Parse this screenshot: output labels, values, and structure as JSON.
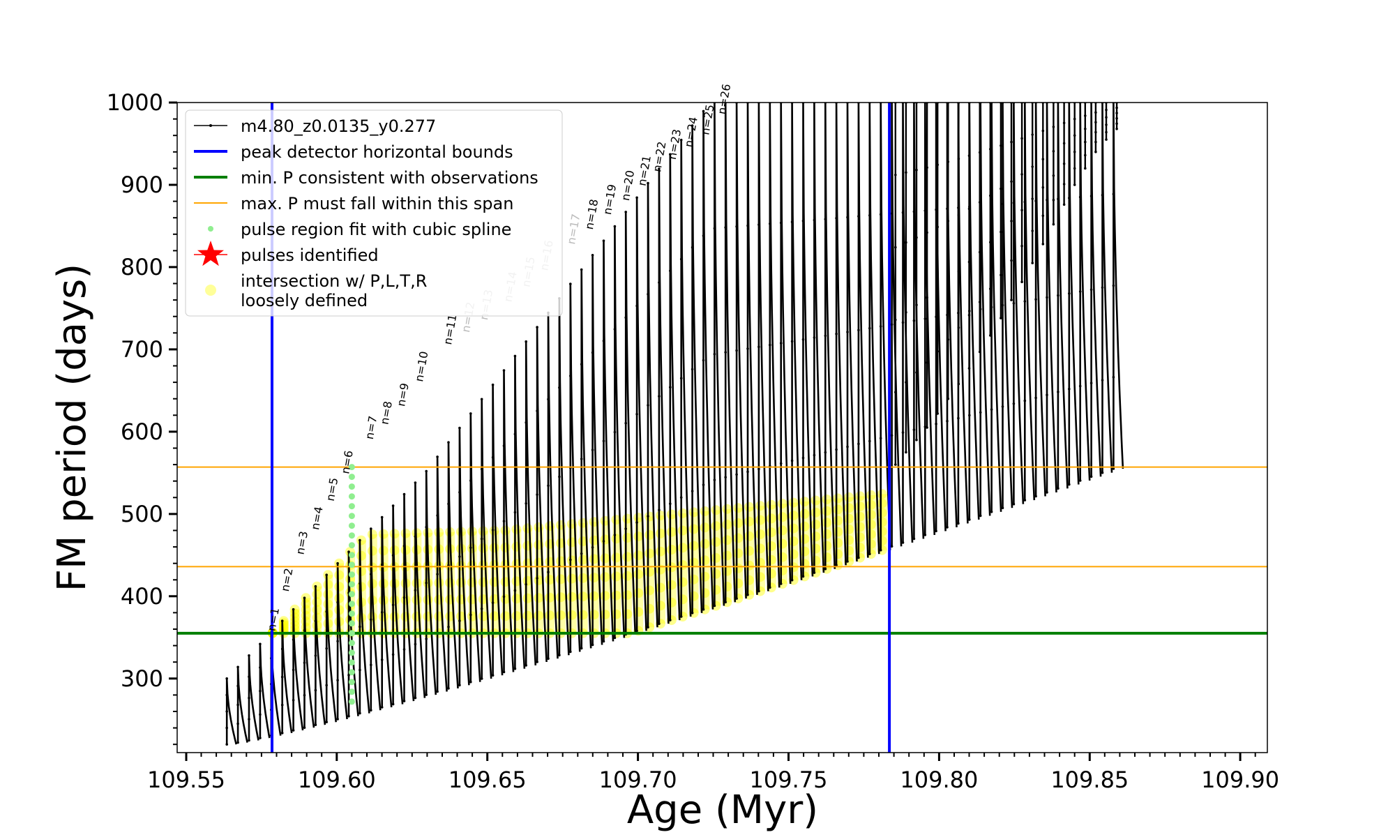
{
  "chart_data": {
    "type": "scatter",
    "title": "",
    "xlabel": "Age (Myr)",
    "ylabel": "FM period (days)",
    "xlim": [
      109.547,
      109.909
    ],
    "ylim": [
      210,
      1000
    ],
    "xticks": [
      "109.55",
      "109.60",
      "109.65",
      "109.70",
      "109.75",
      "109.80",
      "109.85",
      "109.90"
    ],
    "xtick_values": [
      109.55,
      109.6,
      109.65,
      109.7,
      109.75,
      109.8,
      109.85,
      109.9
    ],
    "yticks": [
      "300",
      "400",
      "500",
      "600",
      "700",
      "800",
      "900",
      "1000"
    ],
    "ytick_values": [
      300,
      400,
      500,
      600,
      700,
      800,
      900,
      1000
    ],
    "grid": false,
    "legend_position": "top-left",
    "legend": [
      {
        "label": "m4.80_z0.0135_y0.277",
        "style": "line-marker",
        "color": "#000000"
      },
      {
        "label": "peak detector horizontal bounds",
        "style": "line",
        "color": "#0000ff"
      },
      {
        "label": "min. P consistent with observations",
        "style": "line",
        "color": "#007f00"
      },
      {
        "label": "max. P must fall within this span",
        "style": "thin-line",
        "color": "#ffa500"
      },
      {
        "label": "pulse region fit with cubic spline",
        "style": "dot",
        "color": "#90ee90"
      },
      {
        "label": "pulses identified",
        "style": "star",
        "color": "#ff0000"
      },
      {
        "label": "intersection w/ P,L,T,R",
        "label2": "loosely defined",
        "style": "circle",
        "color": "#ffff99"
      }
    ],
    "vertical_lines": [
      {
        "x": 109.5785,
        "color": "#0000ff"
      },
      {
        "x": 109.7835,
        "color": "#0000ff"
      }
    ],
    "horizontal_lines": [
      {
        "y": 355,
        "color": "#007f00",
        "role": "min"
      },
      {
        "y": 436,
        "color": "#ffa500",
        "role": "span-low"
      },
      {
        "y": 557,
        "color": "#ffa500",
        "role": "span-high"
      }
    ],
    "pulses": {
      "n_pulses": 81,
      "first_age": 109.5635,
      "age_step": 0.00368,
      "trough_period_start": 220,
      "trough_period_end": 555,
      "peak_period_start": 300,
      "peak_period_end": 1000,
      "tail_ages": [
        109.7855,
        109.789,
        109.7925,
        109.796,
        109.7995,
        109.803,
        109.8065,
        109.81,
        109.8135,
        109.817,
        109.8205,
        109.824,
        109.8275,
        109.831,
        109.8345,
        109.838,
        109.8415,
        109.845,
        109.8485,
        109.852,
        109.8555,
        109.859
      ],
      "tail_minima": [
        560,
        575,
        590,
        605,
        622,
        640,
        658,
        677,
        697,
        717,
        738,
        760,
        782,
        805,
        828,
        852,
        876,
        900,
        920,
        940,
        955,
        968
      ]
    },
    "spline_fit": {
      "age": 109.605,
      "p_min": 272,
      "p_max": 557,
      "color": "#90ee90"
    },
    "highlight_band": {
      "p_min": 355,
      "color": "#ffff00"
    },
    "n_labels": [
      {
        "text": "n=1",
        "age": 109.5795,
        "p": 352
      },
      {
        "text": "n=2",
        "age": 109.584,
        "p": 400
      },
      {
        "text": "n=3",
        "age": 109.589,
        "p": 445
      },
      {
        "text": "n=4",
        "age": 109.594,
        "p": 475
      },
      {
        "text": "n=5",
        "age": 109.599,
        "p": 510
      },
      {
        "text": "n=6",
        "age": 109.604,
        "p": 543
      },
      {
        "text": "n=7",
        "age": 109.612,
        "p": 585
      },
      {
        "text": "n=8",
        "age": 109.617,
        "p": 603
      },
      {
        "text": "n=9",
        "age": 109.6225,
        "p": 625
      },
      {
        "text": "n=10",
        "age": 109.6285,
        "p": 655
      },
      {
        "text": "n=11",
        "age": 109.638,
        "p": 700
      },
      {
        "text": "n=12",
        "age": 109.644,
        "p": 715
      },
      {
        "text": "n=13",
        "age": 109.65,
        "p": 730
      },
      {
        "text": "n=14",
        "age": 109.658,
        "p": 752
      },
      {
        "text": "n=15",
        "age": 109.664,
        "p": 770
      },
      {
        "text": "n=16",
        "age": 109.67,
        "p": 790
      },
      {
        "text": "n=17",
        "age": 109.679,
        "p": 822
      },
      {
        "text": "n=18",
        "age": 109.685,
        "p": 840
      },
      {
        "text": "n=19",
        "age": 109.691,
        "p": 858
      },
      {
        "text": "n=20",
        "age": 109.697,
        "p": 875
      },
      {
        "text": "n=21",
        "age": 109.7025,
        "p": 893
      },
      {
        "text": "n=22",
        "age": 109.7075,
        "p": 910
      },
      {
        "text": "n=23",
        "age": 109.7125,
        "p": 925
      },
      {
        "text": "n=24",
        "age": 109.718,
        "p": 940
      },
      {
        "text": "n=25",
        "age": 109.7235,
        "p": 955
      },
      {
        "text": "n=26",
        "age": 109.729,
        "p": 980
      }
    ]
  }
}
